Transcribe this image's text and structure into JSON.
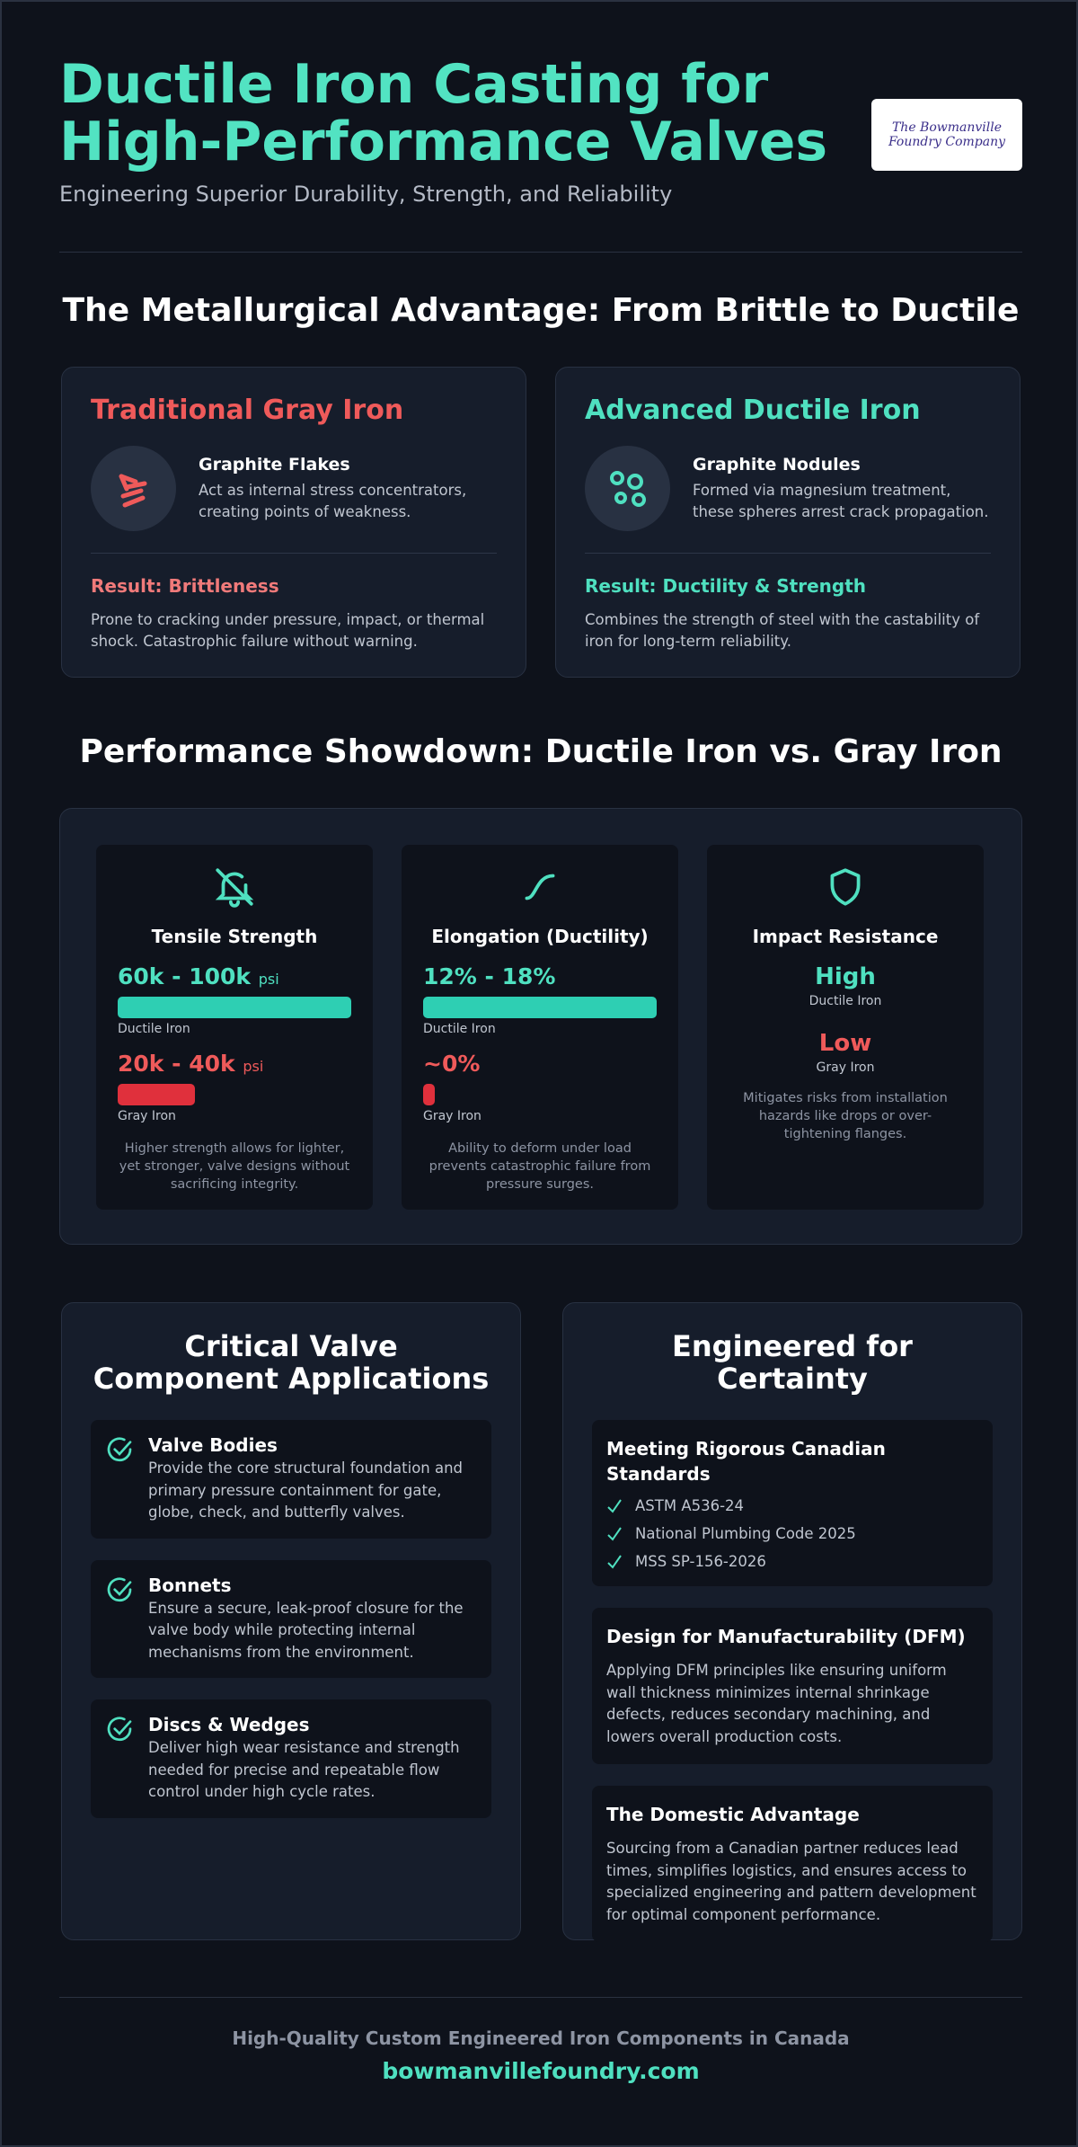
{
  "header": {
    "title": "Ductile Iron Casting for High-Performance Valves",
    "subtitle": "Engineering Superior Durability, Strength, and Reliability",
    "logo": "The Bowmanville Foundry Company"
  },
  "advantage": {
    "title": "The Metallurgical Advantage: From Brittle to Ductile",
    "cards": [
      {
        "title": "Traditional Gray Iron",
        "feature": "Graphite Flakes",
        "feature_text": "Act as internal stress concentrators, creating points of weakness.",
        "result": "Result: Brittleness",
        "result_text": "Prone to cracking under pressure, impact, or thermal shock. Catastrophic failure without warning."
      },
      {
        "title": "Advanced Ductile Iron",
        "feature": "Graphite Nodules",
        "feature_text": "Formed via magnesium treatment, these spheres arrest crack propagation.",
        "result": "Result: Ductility & Strength",
        "result_text": "Combines the strength of steel with the castability of iron for long-term reliability."
      }
    ]
  },
  "performance": {
    "title": "Performance Showdown: Ductile Iron vs. Gray Iron",
    "metrics": [
      {
        "title": "Tensile Strength",
        "ductile_value": "60k - 100k",
        "ductile_unit": "psi",
        "ductile_label": "Ductile Iron",
        "gray_value": "20k - 40k",
        "gray_unit": "psi",
        "gray_label": "Gray Iron",
        "note": "Higher strength allows for lighter, yet stronger, valve designs without sacrificing integrity."
      },
      {
        "title": "Elongation (Ductility)",
        "ductile_value": "12% - 18%",
        "ductile_label": "Ductile Iron",
        "gray_value": "~0%",
        "gray_label": "Gray Iron",
        "note": "Ability to deform under load prevents catastrophic failure from pressure surges."
      },
      {
        "title": "Impact Resistance",
        "ductile_value": "High",
        "ductile_label": "Ductile Iron",
        "gray_value": "Low",
        "gray_label": "Gray Iron",
        "note": "Mitigates risks from installation hazards like drops or over-tightening flanges."
      }
    ]
  },
  "applications": {
    "title": "Critical Valve Component Applications",
    "items": [
      {
        "name": "Valve Bodies",
        "text": "Provide the core structural foundation and primary pressure containment for gate, globe, check, and butterfly valves."
      },
      {
        "name": "Bonnets",
        "text": "Ensure a secure, leak-proof closure for the valve body while protecting internal mechanisms from the environment."
      },
      {
        "name": "Discs & Wedges",
        "text": "Deliver high wear resistance and strength needed for precise and repeatable flow control under high cycle rates."
      }
    ]
  },
  "certainty": {
    "title": "Engineered for Certainty",
    "standards": {
      "title": "Meeting Rigorous Canadian Standards",
      "items": [
        "ASTM A536-24",
        "National Plumbing Code 2025",
        "MSS SP-156-2026"
      ]
    },
    "blocks": [
      {
        "title": "Design for Manufacturability (DFM)",
        "text": "Applying DFM principles like ensuring uniform wall thickness minimizes internal shrinkage defects, reduces secondary machining, and lowers overall production costs."
      },
      {
        "title": "The Domestic Advantage",
        "text": "Sourcing from a Canadian partner reduces lead times, simplifies logistics, and ensures access to specialized engineering and pattern development for optimal component performance."
      }
    ]
  },
  "footer": {
    "tagline": "High-Quality Custom Engineered Iron Components in Canada",
    "url": "bowmanvillefoundry.com"
  }
}
